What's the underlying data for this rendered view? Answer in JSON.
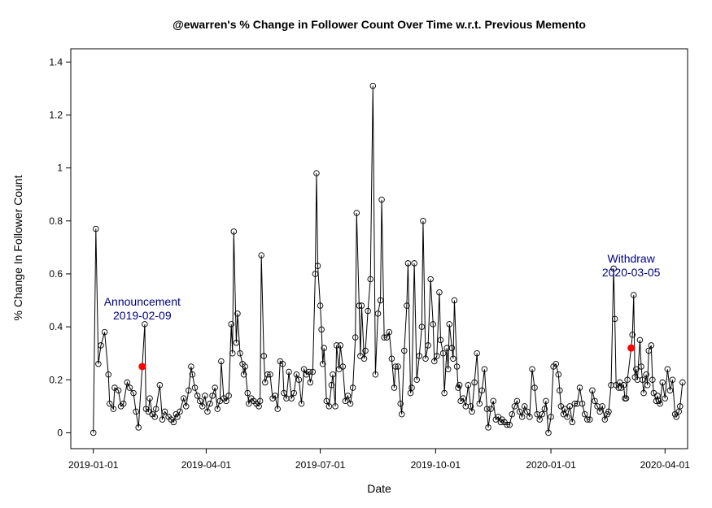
{
  "chart_data": {
    "type": "line",
    "title": "@ewarren's % Change in Follower Count Over Time w.r.t. Previous Memento",
    "x_label": "Date",
    "y_label": "% Change In Follower Count",
    "color": "#000000",
    "xlim": [
      "2018-12-14",
      "2020-04-19"
    ],
    "xticks": [
      "2019-01-01",
      "2019-04-01",
      "2019-07-01",
      "2019-10-01",
      "2020-01-01",
      "2020-04-01"
    ],
    "ylim": [
      -0.06,
      1.45
    ],
    "yticks": [
      0,
      0.2,
      0.4,
      0.6,
      0.8,
      1,
      1.2,
      1.4
    ],
    "x": [
      "2019-01-01",
      "2019-01-03",
      "2019-01-05",
      "2019-01-07",
      "2019-01-10",
      "2019-01-13",
      "2019-01-14",
      "2019-01-17",
      "2019-01-18",
      "2019-01-21",
      "2019-01-23",
      "2019-01-25",
      "2019-01-28",
      "2019-01-30",
      "2019-02-02",
      "2019-02-04",
      "2019-02-06",
      "2019-02-09",
      "2019-02-11",
      "2019-02-12",
      "2019-02-14",
      "2019-02-15",
      "2019-02-17",
      "2019-02-19",
      "2019-02-20",
      "2019-02-23",
      "2019-02-25",
      "2019-02-27",
      "2019-03-02",
      "2019-03-04",
      "2019-03-06",
      "2019-03-08",
      "2019-03-09",
      "2019-03-11",
      "2019-03-14",
      "2019-03-16",
      "2019-03-18",
      "2019-03-20",
      "2019-03-21",
      "2019-03-23",
      "2019-03-25",
      "2019-03-27",
      "2019-03-29",
      "2019-03-31",
      "2019-04-02",
      "2019-04-04",
      "2019-04-06",
      "2019-04-08",
      "2019-04-10",
      "2019-04-12",
      "2019-04-13",
      "2019-04-15",
      "2019-04-17",
      "2019-04-19",
      "2019-04-21",
      "2019-04-22",
      "2019-04-23",
      "2019-04-25",
      "2019-04-26",
      "2019-04-28",
      "2019-04-30",
      "2019-05-01",
      "2019-05-02",
      "2019-05-04",
      "2019-05-05",
      "2019-05-07",
      "2019-05-09",
      "2019-05-11",
      "2019-05-13",
      "2019-05-14",
      "2019-05-15",
      "2019-05-17",
      "2019-05-18",
      "2019-05-20",
      "2019-05-22",
      "2019-05-24",
      "2019-05-26",
      "2019-05-28",
      "2019-05-30",
      "2019-06-01",
      "2019-06-02",
      "2019-06-04",
      "2019-06-06",
      "2019-06-08",
      "2019-06-10",
      "2019-06-12",
      "2019-06-14",
      "2019-06-16",
      "2019-06-18",
      "2019-06-20",
      "2019-06-22",
      "2019-06-23",
      "2019-06-25",
      "2019-06-27",
      "2019-06-28",
      "2019-06-29",
      "2019-07-01",
      "2019-07-02",
      "2019-07-03",
      "2019-07-04",
      "2019-07-06",
      "2019-07-08",
      "2019-07-10",
      "2019-07-11",
      "2019-07-13",
      "2019-07-14",
      "2019-07-16",
      "2019-07-17",
      "2019-07-19",
      "2019-07-21",
      "2019-07-23",
      "2019-07-25",
      "2019-07-27",
      "2019-07-29",
      "2019-07-30",
      "2019-08-01",
      "2019-08-02",
      "2019-08-03",
      "2019-08-05",
      "2019-08-06",
      "2019-08-08",
      "2019-08-10",
      "2019-08-12",
      "2019-08-14",
      "2019-08-16",
      "2019-08-18",
      "2019-08-19",
      "2019-08-21",
      "2019-08-23",
      "2019-08-25",
      "2019-08-27",
      "2019-08-29",
      "2019-08-30",
      "2019-09-01",
      "2019-09-03",
      "2019-09-04",
      "2019-09-06",
      "2019-09-08",
      "2019-09-09",
      "2019-09-11",
      "2019-09-12",
      "2019-09-14",
      "2019-09-16",
      "2019-09-18",
      "2019-09-20",
      "2019-09-21",
      "2019-09-23",
      "2019-09-25",
      "2019-09-27",
      "2019-09-29",
      "2019-09-30",
      "2019-10-02",
      "2019-10-04",
      "2019-10-05",
      "2019-10-07",
      "2019-10-08",
      "2019-10-10",
      "2019-10-11",
      "2019-10-12",
      "2019-10-14",
      "2019-10-15",
      "2019-10-16",
      "2019-10-18",
      "2019-10-19",
      "2019-10-20",
      "2019-10-21",
      "2019-10-23",
      "2019-10-25",
      "2019-10-27",
      "2019-10-29",
      "2019-10-30",
      "2019-11-01",
      "2019-11-03",
      "2019-11-05",
      "2019-11-07",
      "2019-11-09",
      "2019-11-11",
      "2019-11-12",
      "2019-11-14",
      "2019-11-16",
      "2019-11-18",
      "2019-11-20",
      "2019-11-22",
      "2019-11-23",
      "2019-11-25",
      "2019-11-27",
      "2019-11-29",
      "2019-12-01",
      "2019-12-03",
      "2019-12-05",
      "2019-12-07",
      "2019-12-09",
      "2019-12-11",
      "2019-12-13",
      "2019-12-15",
      "2019-12-17",
      "2019-12-19",
      "2019-12-21",
      "2019-12-23",
      "2019-12-25",
      "2019-12-27",
      "2019-12-28",
      "2019-12-30",
      "2020-01-01",
      "2020-01-03",
      "2020-01-05",
      "2020-01-07",
      "2020-01-08",
      "2020-01-09",
      "2020-01-11",
      "2020-01-12",
      "2020-01-14",
      "2020-01-16",
      "2020-01-18",
      "2020-01-20",
      "2020-01-22",
      "2020-01-24",
      "2020-01-26",
      "2020-01-28",
      "2020-01-30",
      "2020-02-01",
      "2020-02-03",
      "2020-02-05",
      "2020-02-07",
      "2020-02-09",
      "2020-02-11",
      "2020-02-13",
      "2020-02-15",
      "2020-02-16",
      "2020-02-18",
      "2020-02-20",
      "2020-02-21",
      "2020-02-22",
      "2020-02-24",
      "2020-02-25",
      "2020-02-26",
      "2020-02-28",
      "2020-02-29",
      "2020-03-01",
      "2020-03-02",
      "2020-03-05",
      "2020-03-06",
      "2020-03-07",
      "2020-03-08",
      "2020-03-09",
      "2020-03-10",
      "2020-03-12",
      "2020-03-13",
      "2020-03-14",
      "2020-03-15",
      "2020-03-17",
      "2020-03-18",
      "2020-03-19",
      "2020-03-21",
      "2020-03-22",
      "2020-03-23",
      "2020-03-25",
      "2020-03-26",
      "2020-03-27",
      "2020-03-28",
      "2020-03-30",
      "2020-04-01",
      "2020-04-03",
      "2020-04-05",
      "2020-04-07",
      "2020-04-09",
      "2020-04-10",
      "2020-04-12",
      "2020-04-13",
      "2020-04-15"
    ],
    "values": [
      0,
      0.77,
      0.26,
      0.33,
      0.38,
      0.22,
      0.11,
      0.09,
      0.17,
      0.16,
      0.1,
      0.11,
      0.19,
      0.17,
      0.15,
      0.08,
      0.02,
      0.25,
      0.41,
      0.09,
      0.08,
      0.13,
      0.07,
      0.06,
      0.09,
      0.18,
      0.05,
      0.08,
      0.06,
      0.05,
      0.04,
      0.07,
      0.06,
      0.08,
      0.13,
      0.1,
      0.16,
      0.25,
      0.22,
      0.17,
      0.14,
      0.12,
      0.1,
      0.14,
      0.08,
      0.11,
      0.14,
      0.17,
      0.09,
      0.12,
      0.27,
      0.13,
      0.12,
      0.14,
      0.41,
      0.3,
      0.76,
      0.34,
      0.45,
      0.3,
      0.26,
      0.22,
      0.25,
      0.15,
      0.11,
      0.13,
      0.12,
      0.11,
      0.1,
      0.12,
      0.67,
      0.29,
      0.19,
      0.22,
      0.22,
      0.13,
      0.14,
      0.09,
      0.27,
      0.26,
      0.15,
      0.13,
      0.23,
      0.13,
      0.15,
      0.22,
      0.2,
      0.11,
      0.24,
      0.22,
      0.23,
      0.19,
      0.23,
      0.6,
      0.98,
      0.63,
      0.48,
      0.39,
      0.26,
      0.32,
      0.12,
      0.1,
      0.18,
      0.22,
      0.1,
      0.33,
      0.24,
      0.33,
      0.25,
      0.12,
      0.14,
      0.11,
      0.17,
      0.36,
      0.83,
      0.48,
      0.29,
      0.48,
      0.28,
      0.31,
      0.46,
      0.58,
      1.31,
      0.22,
      0.45,
      0.5,
      0.88,
      0.36,
      0.36,
      0.38,
      0.28,
      0.17,
      0.25,
      0.25,
      0.11,
      0.07,
      0.31,
      0.48,
      0.64,
      0.15,
      0.17,
      0.64,
      0.2,
      0.29,
      0.4,
      0.8,
      0.28,
      0.33,
      0.58,
      0.41,
      0.27,
      0.29,
      0.53,
      0.35,
      0.3,
      0.15,
      0.32,
      0.24,
      0.41,
      0.32,
      0.28,
      0.5,
      0.25,
      0.17,
      0.18,
      0.12,
      0.13,
      0.1,
      0.18,
      0.1,
      0.08,
      0.19,
      0.3,
      0.11,
      0.16,
      0.24,
      0.09,
      0.02,
      0.09,
      0.12,
      0.05,
      0.06,
      0.04,
      0.05,
      0.04,
      0.03,
      0.03,
      0.07,
      0.1,
      0.12,
      0.08,
      0.06,
      0.1,
      0.08,
      0.06,
      0.24,
      0.17,
      0.07,
      0.05,
      0.07,
      0.09,
      0.12,
      0,
      0.06,
      0.25,
      0.26,
      0.22,
      0.16,
      0.1,
      0.07,
      0.09,
      0.06,
      0.1,
      0.04,
      0.11,
      0.11,
      0.17,
      0.11,
      0.07,
      0.05,
      0.05,
      0.16,
      0.12,
      0.1,
      0.08,
      0.1,
      0.05,
      0.07,
      0.08,
      0.18,
      0.62,
      0.43,
      0.18,
      0.17,
      0.19,
      0.17,
      0.18,
      0.13,
      0.13,
      0.2,
      0.32,
      0.37,
      0.52,
      0.21,
      0.24,
      0.2,
      0.35,
      0.25,
      0.2,
      0.15,
      0.22,
      0.18,
      0.31,
      0.33,
      0.2,
      0.15,
      0.12,
      0.14,
      0.12,
      0.11,
      0.19,
      0.13,
      0.24,
      0.16,
      0.2,
      0.07,
      0.06,
      0.08,
      0.1,
      0.19
    ],
    "annotations": [
      {
        "text": [
          "Announcement",
          "2019-02-09"
        ],
        "x": "2019-02-09",
        "y": 0.25,
        "color": "#ff0000",
        "text_color": "#00007f"
      },
      {
        "text": [
          "Withdraw",
          "2020-03-05"
        ],
        "x": "2020-03-05",
        "y": 0.32,
        "color": "#ff0000",
        "text_color": "#00007f"
      }
    ]
  }
}
